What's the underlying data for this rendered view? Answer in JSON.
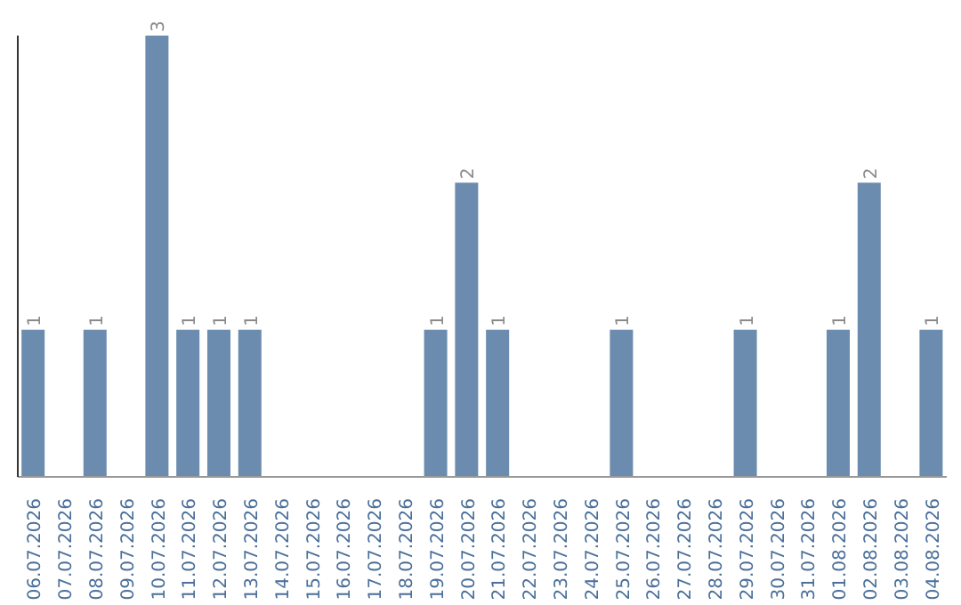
{
  "chart_data": {
    "type": "bar",
    "categories": [
      "06.07.2026",
      "07.07.2026",
      "08.07.2026",
      "09.07.2026",
      "10.07.2026",
      "11.07.2026",
      "12.07.2026",
      "13.07.2026",
      "14.07.2026",
      "15.07.2026",
      "16.07.2026",
      "17.07.2026",
      "18.07.2026",
      "19.07.2026",
      "20.07.2026",
      "21.07.2026",
      "22.07.2026",
      "23.07.2026",
      "24.07.2026",
      "25.07.2026",
      "26.07.2026",
      "27.07.2026",
      "28.07.2026",
      "29.07.2026",
      "30.07.2026",
      "31.07.2026",
      "01.08.2026",
      "02.08.2026",
      "03.08.2026",
      "04.08.2026"
    ],
    "values": [
      1,
      0,
      1,
      0,
      3,
      1,
      1,
      1,
      0,
      0,
      0,
      0,
      0,
      1,
      2,
      1,
      0,
      0,
      0,
      1,
      0,
      0,
      0,
      1,
      0,
      0,
      1,
      2,
      0,
      1
    ],
    "value_labels": [
      "1",
      null,
      "1",
      null,
      "3",
      "1",
      "1",
      "1",
      null,
      null,
      null,
      null,
      null,
      "1",
      "2",
      "1",
      null,
      null,
      null,
      "1",
      null,
      null,
      null,
      "1",
      null,
      null,
      "1",
      "2",
      null,
      "1"
    ],
    "color": "#6b8cae"
  }
}
